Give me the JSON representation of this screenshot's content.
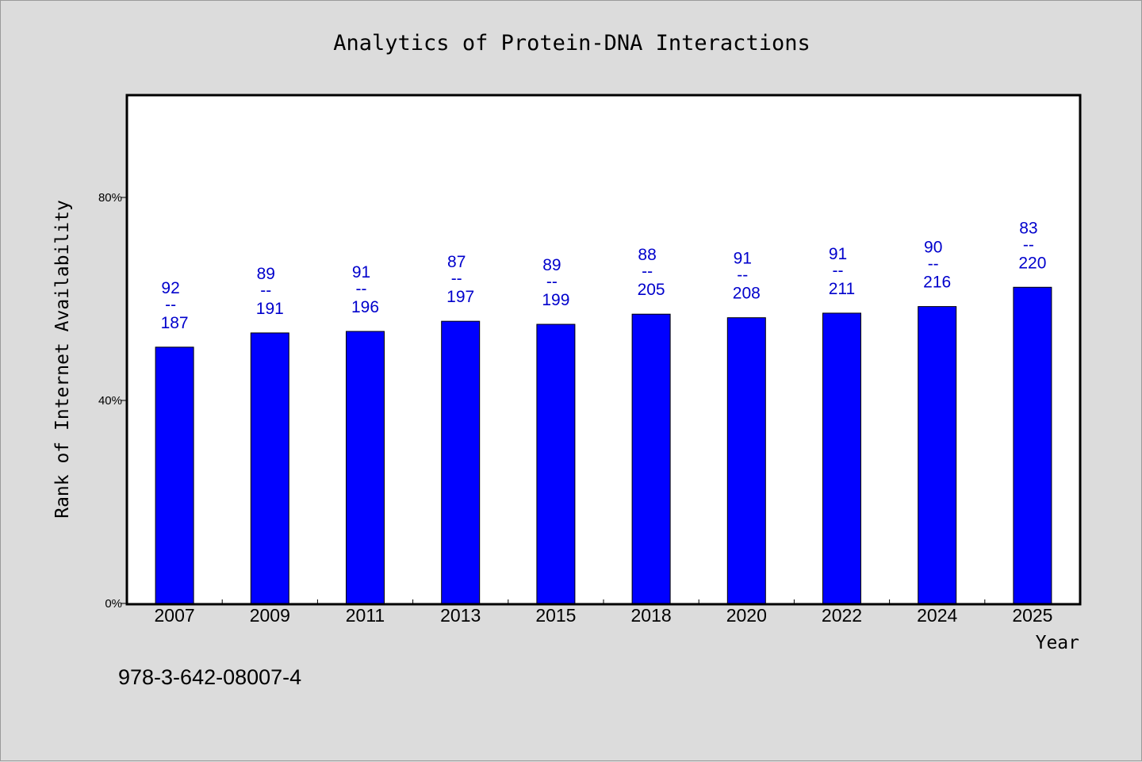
{
  "chart_data": {
    "type": "bar",
    "title": "Analytics of Protein-DNA Interactions",
    "xlabel": "Year",
    "ylabel": "Rank of Internet Availability",
    "categories": [
      "2007",
      "2009",
      "2011",
      "2013",
      "2015",
      "2018",
      "2020",
      "2022",
      "2024",
      "2025"
    ],
    "values": [
      50.5,
      53.3,
      53.6,
      55.6,
      55.0,
      57.0,
      56.3,
      57.2,
      58.5,
      62.3
    ],
    "labels_top": [
      "92",
      "89",
      "91",
      "87",
      "89",
      "88",
      "91",
      "91",
      "90",
      "83"
    ],
    "labels_bottom": [
      "187",
      "191",
      "196",
      "197",
      "199",
      "205",
      "208",
      "211",
      "216",
      "220"
    ],
    "label_separator": "--",
    "ylim": [
      0,
      100
    ],
    "yticks": [
      0,
      40,
      80
    ],
    "ytick_labels": [
      "0%",
      "40%",
      "80%"
    ],
    "grid": false,
    "bar_color": "#0000ff",
    "label_color": "#0000cc"
  },
  "footnote": "978-3-642-08007-4"
}
